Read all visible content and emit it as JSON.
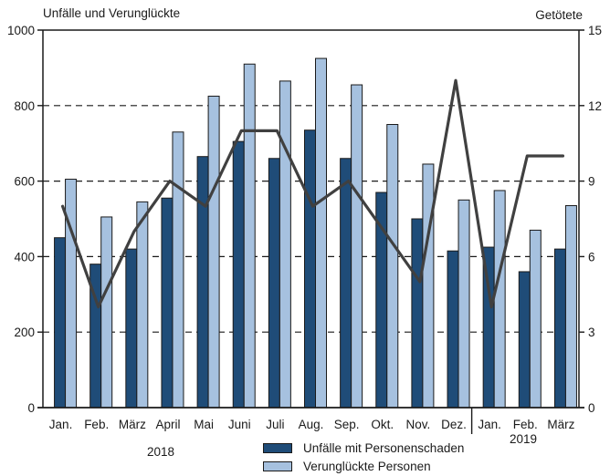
{
  "chart_data": {
    "type": "bar",
    "categories": [
      "Jan.",
      "Feb.",
      "März",
      "April",
      "Mai",
      "Juni",
      "Juli",
      "Aug.",
      "Sep.",
      "Okt.",
      "Nov.",
      "Dez.",
      "Jan.",
      "Feb.",
      "März"
    ],
    "year_groups": [
      {
        "label": "2018",
        "start": 0,
        "count": 12
      },
      {
        "label": "2019",
        "start": 12,
        "count": 3
      }
    ],
    "series": [
      {
        "name": "Unfälle mit Personenschaden",
        "type": "bar",
        "axis": "left",
        "color": "#1F4C78",
        "values": [
          450,
          380,
          420,
          555,
          665,
          705,
          660,
          735,
          660,
          570,
          500,
          415,
          425,
          360,
          420
        ]
      },
      {
        "name": "Verunglückte Personen",
        "type": "bar",
        "axis": "left",
        "color": "#A6C1DF",
        "values": [
          605,
          505,
          545,
          730,
          825,
          910,
          865,
          925,
          855,
          750,
          645,
          550,
          575,
          470,
          535
        ]
      },
      {
        "name": "Getötete",
        "type": "line",
        "axis": "right",
        "color": "#404040",
        "values": [
          8,
          4,
          7,
          9,
          8,
          11,
          11,
          8,
          9,
          7,
          5,
          13,
          4,
          10,
          10
        ]
      }
    ],
    "left_axis": {
      "label": "Unfälle und Verunglückte",
      "min": 0,
      "max": 1000,
      "ticks": [
        0,
        200,
        400,
        600,
        800,
        1000
      ]
    },
    "right_axis": {
      "label": "Getötete",
      "min": 0,
      "max": 15,
      "ticks": [
        0,
        3,
        6,
        9,
        12,
        15
      ]
    },
    "grid": {
      "style": "dashed",
      "left_values": [
        200,
        400,
        600,
        800
      ],
      "top_border_value": 1000
    },
    "legend_position": "bottom"
  },
  "legend": {
    "items": [
      {
        "label": "Unfälle mit Personenschaden",
        "color": "#1F4C78"
      },
      {
        "label": "Verunglückte Personen",
        "color": "#A6C1DF"
      }
    ]
  }
}
